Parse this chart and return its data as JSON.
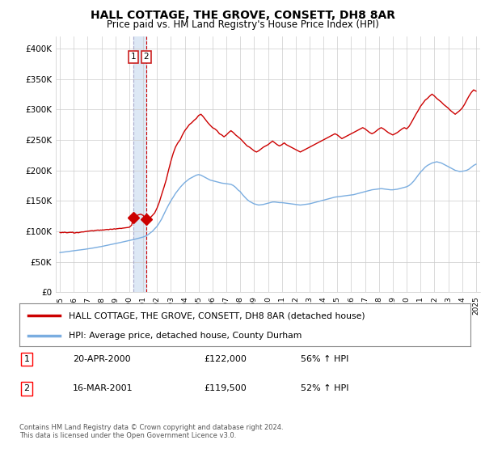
{
  "title": "HALL COTTAGE, THE GROVE, CONSETT, DH8 8AR",
  "subtitle": "Price paid vs. HM Land Registry's House Price Index (HPI)",
  "legend_line1": "HALL COTTAGE, THE GROVE, CONSETT, DH8 8AR (detached house)",
  "legend_line2": "HPI: Average price, detached house, County Durham",
  "footer": "Contains HM Land Registry data © Crown copyright and database right 2024.\nThis data is licensed under the Open Government Licence v3.0.",
  "transactions": [
    {
      "num": 1,
      "date": "20-APR-2000",
      "price": "£122,000",
      "hpi": "56% ↑ HPI"
    },
    {
      "num": 2,
      "date": "16-MAR-2001",
      "price": "£119,500",
      "hpi": "52% ↑ HPI"
    }
  ],
  "marker1_x": 2000.3,
  "marker2_x": 2001.21,
  "marker1_y": 122000,
  "marker2_y": 119500,
  "red_data": [
    [
      1995.0,
      98000
    ],
    [
      1995.08,
      97500
    ],
    [
      1995.17,
      98200
    ],
    [
      1995.25,
      97800
    ],
    [
      1995.33,
      98500
    ],
    [
      1995.42,
      98000
    ],
    [
      1995.5,
      97500
    ],
    [
      1995.58,
      97800
    ],
    [
      1995.67,
      98000
    ],
    [
      1995.75,
      98300
    ],
    [
      1995.83,
      98100
    ],
    [
      1995.92,
      98500
    ],
    [
      1996.0,
      97000
    ],
    [
      1996.08,
      97200
    ],
    [
      1996.17,
      97800
    ],
    [
      1996.25,
      98000
    ],
    [
      1996.33,
      97500
    ],
    [
      1996.42,
      98200
    ],
    [
      1996.5,
      98500
    ],
    [
      1996.58,
      99000
    ],
    [
      1996.67,
      98800
    ],
    [
      1996.75,
      99200
    ],
    [
      1996.83,
      99500
    ],
    [
      1996.92,
      99800
    ],
    [
      1997.0,
      100000
    ],
    [
      1997.08,
      100200
    ],
    [
      1997.17,
      100500
    ],
    [
      1997.25,
      100800
    ],
    [
      1997.33,
      101000
    ],
    [
      1997.42,
      100500
    ],
    [
      1997.5,
      101200
    ],
    [
      1997.58,
      101500
    ],
    [
      1997.67,
      101800
    ],
    [
      1997.75,
      102000
    ],
    [
      1997.83,
      101500
    ],
    [
      1997.92,
      102000
    ],
    [
      1998.0,
      101800
    ],
    [
      1998.08,
      102200
    ],
    [
      1998.17,
      102000
    ],
    [
      1998.25,
      102500
    ],
    [
      1998.33,
      102800
    ],
    [
      1998.42,
      103000
    ],
    [
      1998.5,
      102500
    ],
    [
      1998.58,
      103200
    ],
    [
      1998.67,
      103500
    ],
    [
      1998.75,
      103000
    ],
    [
      1998.83,
      103500
    ],
    [
      1998.92,
      104000
    ],
    [
      1999.0,
      103500
    ],
    [
      1999.08,
      104000
    ],
    [
      1999.17,
      104200
    ],
    [
      1999.25,
      104500
    ],
    [
      1999.33,
      104800
    ],
    [
      1999.42,
      104500
    ],
    [
      1999.5,
      105000
    ],
    [
      1999.58,
      105200
    ],
    [
      1999.67,
      105500
    ],
    [
      1999.75,
      105800
    ],
    [
      1999.83,
      106000
    ],
    [
      1999.92,
      106200
    ],
    [
      2000.0,
      106500
    ],
    [
      2000.17,
      110000
    ],
    [
      2000.3,
      122000
    ],
    [
      2000.5,
      125000
    ],
    [
      2000.67,
      127000
    ],
    [
      2000.83,
      128000
    ],
    [
      2001.0,
      126000
    ],
    [
      2001.21,
      119500
    ],
    [
      2001.5,
      122000
    ],
    [
      2001.67,
      126000
    ],
    [
      2001.83,
      130000
    ],
    [
      2002.0,
      138000
    ],
    [
      2002.17,
      148000
    ],
    [
      2002.33,
      160000
    ],
    [
      2002.5,
      172000
    ],
    [
      2002.67,
      185000
    ],
    [
      2002.83,
      200000
    ],
    [
      2003.0,
      215000
    ],
    [
      2003.17,
      228000
    ],
    [
      2003.33,
      238000
    ],
    [
      2003.5,
      245000
    ],
    [
      2003.67,
      250000
    ],
    [
      2003.83,
      258000
    ],
    [
      2004.0,
      265000
    ],
    [
      2004.17,
      270000
    ],
    [
      2004.33,
      275000
    ],
    [
      2004.5,
      278000
    ],
    [
      2004.67,
      282000
    ],
    [
      2004.83,
      285000
    ],
    [
      2005.0,
      290000
    ],
    [
      2005.17,
      292000
    ],
    [
      2005.33,
      288000
    ],
    [
      2005.5,
      283000
    ],
    [
      2005.67,
      278000
    ],
    [
      2005.83,
      274000
    ],
    [
      2006.0,
      270000
    ],
    [
      2006.17,
      268000
    ],
    [
      2006.33,
      265000
    ],
    [
      2006.5,
      260000
    ],
    [
      2006.67,
      258000
    ],
    [
      2006.83,
      255000
    ],
    [
      2007.0,
      258000
    ],
    [
      2007.17,
      262000
    ],
    [
      2007.33,
      265000
    ],
    [
      2007.5,
      262000
    ],
    [
      2007.67,
      258000
    ],
    [
      2007.83,
      255000
    ],
    [
      2008.0,
      252000
    ],
    [
      2008.17,
      248000
    ],
    [
      2008.33,
      244000
    ],
    [
      2008.5,
      240000
    ],
    [
      2008.67,
      238000
    ],
    [
      2008.83,
      235000
    ],
    [
      2009.0,
      232000
    ],
    [
      2009.17,
      230000
    ],
    [
      2009.33,
      232000
    ],
    [
      2009.5,
      235000
    ],
    [
      2009.67,
      238000
    ],
    [
      2009.83,
      240000
    ],
    [
      2010.0,
      242000
    ],
    [
      2010.17,
      245000
    ],
    [
      2010.33,
      248000
    ],
    [
      2010.5,
      245000
    ],
    [
      2010.67,
      242000
    ],
    [
      2010.83,
      240000
    ],
    [
      2011.0,
      242000
    ],
    [
      2011.17,
      245000
    ],
    [
      2011.33,
      242000
    ],
    [
      2011.5,
      240000
    ],
    [
      2011.67,
      238000
    ],
    [
      2011.83,
      236000
    ],
    [
      2012.0,
      234000
    ],
    [
      2012.17,
      232000
    ],
    [
      2012.33,
      230000
    ],
    [
      2012.5,
      232000
    ],
    [
      2012.67,
      234000
    ],
    [
      2012.83,
      236000
    ],
    [
      2013.0,
      238000
    ],
    [
      2013.17,
      240000
    ],
    [
      2013.33,
      242000
    ],
    [
      2013.5,
      244000
    ],
    [
      2013.67,
      246000
    ],
    [
      2013.83,
      248000
    ],
    [
      2014.0,
      250000
    ],
    [
      2014.17,
      252000
    ],
    [
      2014.33,
      254000
    ],
    [
      2014.5,
      256000
    ],
    [
      2014.67,
      258000
    ],
    [
      2014.83,
      260000
    ],
    [
      2015.0,
      258000
    ],
    [
      2015.17,
      255000
    ],
    [
      2015.33,
      252000
    ],
    [
      2015.5,
      254000
    ],
    [
      2015.67,
      256000
    ],
    [
      2015.83,
      258000
    ],
    [
      2016.0,
      260000
    ],
    [
      2016.17,
      262000
    ],
    [
      2016.33,
      264000
    ],
    [
      2016.5,
      266000
    ],
    [
      2016.67,
      268000
    ],
    [
      2016.83,
      270000
    ],
    [
      2017.0,
      268000
    ],
    [
      2017.17,
      265000
    ],
    [
      2017.33,
      262000
    ],
    [
      2017.5,
      260000
    ],
    [
      2017.67,
      262000
    ],
    [
      2017.83,
      265000
    ],
    [
      2018.0,
      268000
    ],
    [
      2018.17,
      270000
    ],
    [
      2018.33,
      268000
    ],
    [
      2018.5,
      265000
    ],
    [
      2018.67,
      262000
    ],
    [
      2018.83,
      260000
    ],
    [
      2019.0,
      258000
    ],
    [
      2019.17,
      260000
    ],
    [
      2019.33,
      262000
    ],
    [
      2019.5,
      265000
    ],
    [
      2019.67,
      268000
    ],
    [
      2019.83,
      270000
    ],
    [
      2020.0,
      268000
    ],
    [
      2020.17,
      272000
    ],
    [
      2020.33,
      278000
    ],
    [
      2020.5,
      285000
    ],
    [
      2020.67,
      292000
    ],
    [
      2020.83,
      298000
    ],
    [
      2021.0,
      305000
    ],
    [
      2021.17,
      310000
    ],
    [
      2021.33,
      315000
    ],
    [
      2021.5,
      318000
    ],
    [
      2021.67,
      322000
    ],
    [
      2021.83,
      325000
    ],
    [
      2022.0,
      322000
    ],
    [
      2022.17,
      318000
    ],
    [
      2022.33,
      315000
    ],
    [
      2022.5,
      312000
    ],
    [
      2022.67,
      308000
    ],
    [
      2022.83,
      305000
    ],
    [
      2023.0,
      302000
    ],
    [
      2023.17,
      298000
    ],
    [
      2023.33,
      295000
    ],
    [
      2023.5,
      292000
    ],
    [
      2023.67,
      295000
    ],
    [
      2023.83,
      298000
    ],
    [
      2024.0,
      302000
    ],
    [
      2024.17,
      308000
    ],
    [
      2024.33,
      315000
    ],
    [
      2024.5,
      322000
    ],
    [
      2024.67,
      328000
    ],
    [
      2024.83,
      332000
    ],
    [
      2025.0,
      330000
    ]
  ],
  "blue_data": [
    [
      1995.0,
      65000
    ],
    [
      1995.08,
      65200
    ],
    [
      1995.17,
      65500
    ],
    [
      1995.25,
      65800
    ],
    [
      1995.33,
      66000
    ],
    [
      1995.42,
      66200
    ],
    [
      1995.5,
      66500
    ],
    [
      1995.58,
      66800
    ],
    [
      1995.67,
      67000
    ],
    [
      1995.75,
      67200
    ],
    [
      1995.83,
      67500
    ],
    [
      1995.92,
      67800
    ],
    [
      1996.0,
      68000
    ],
    [
      1996.08,
      68200
    ],
    [
      1996.17,
      68500
    ],
    [
      1996.25,
      68800
    ],
    [
      1996.33,
      69000
    ],
    [
      1996.42,
      69200
    ],
    [
      1996.5,
      69500
    ],
    [
      1996.58,
      69800
    ],
    [
      1996.67,
      70000
    ],
    [
      1996.75,
      70200
    ],
    [
      1996.83,
      70500
    ],
    [
      1996.92,
      70800
    ],
    [
      1997.0,
      71000
    ],
    [
      1997.08,
      71300
    ],
    [
      1997.17,
      71600
    ],
    [
      1997.25,
      72000
    ],
    [
      1997.33,
      72300
    ],
    [
      1997.42,
      72600
    ],
    [
      1997.5,
      73000
    ],
    [
      1997.58,
      73300
    ],
    [
      1997.67,
      73600
    ],
    [
      1997.75,
      74000
    ],
    [
      1997.83,
      74300
    ],
    [
      1997.92,
      74600
    ],
    [
      1998.0,
      75000
    ],
    [
      1998.08,
      75400
    ],
    [
      1998.17,
      75800
    ],
    [
      1998.25,
      76200
    ],
    [
      1998.33,
      76600
    ],
    [
      1998.42,
      77000
    ],
    [
      1998.5,
      77400
    ],
    [
      1998.58,
      77800
    ],
    [
      1998.67,
      78200
    ],
    [
      1998.75,
      78600
    ],
    [
      1998.83,
      79000
    ],
    [
      1998.92,
      79400
    ],
    [
      1999.0,
      79800
    ],
    [
      1999.08,
      80200
    ],
    [
      1999.17,
      80600
    ],
    [
      1999.25,
      81000
    ],
    [
      1999.33,
      81400
    ],
    [
      1999.42,
      81800
    ],
    [
      1999.5,
      82200
    ],
    [
      1999.58,
      82600
    ],
    [
      1999.67,
      83000
    ],
    [
      1999.75,
      83400
    ],
    [
      1999.83,
      83800
    ],
    [
      1999.92,
      84200
    ],
    [
      2000.0,
      84600
    ],
    [
      2000.17,
      85500
    ],
    [
      2000.33,
      86500
    ],
    [
      2000.5,
      87500
    ],
    [
      2000.67,
      88500
    ],
    [
      2000.83,
      89500
    ],
    [
      2001.0,
      90500
    ],
    [
      2001.17,
      92000
    ],
    [
      2001.33,
      94000
    ],
    [
      2001.5,
      97000
    ],
    [
      2001.67,
      100000
    ],
    [
      2001.83,
      104000
    ],
    [
      2002.0,
      108000
    ],
    [
      2002.17,
      114000
    ],
    [
      2002.33,
      120000
    ],
    [
      2002.5,
      128000
    ],
    [
      2002.67,
      136000
    ],
    [
      2002.83,
      143000
    ],
    [
      2003.0,
      150000
    ],
    [
      2003.17,
      156000
    ],
    [
      2003.33,
      162000
    ],
    [
      2003.5,
      167000
    ],
    [
      2003.67,
      172000
    ],
    [
      2003.83,
      176000
    ],
    [
      2004.0,
      180000
    ],
    [
      2004.17,
      183000
    ],
    [
      2004.33,
      186000
    ],
    [
      2004.5,
      188000
    ],
    [
      2004.67,
      190000
    ],
    [
      2004.83,
      192000
    ],
    [
      2005.0,
      193000
    ],
    [
      2005.17,
      192000
    ],
    [
      2005.33,
      190000
    ],
    [
      2005.5,
      188000
    ],
    [
      2005.67,
      186000
    ],
    [
      2005.83,
      184000
    ],
    [
      2006.0,
      183000
    ],
    [
      2006.17,
      182000
    ],
    [
      2006.33,
      181000
    ],
    [
      2006.5,
      180000
    ],
    [
      2006.67,
      179000
    ],
    [
      2006.83,
      178500
    ],
    [
      2007.0,
      178000
    ],
    [
      2007.17,
      177500
    ],
    [
      2007.33,
      177000
    ],
    [
      2007.5,
      175000
    ],
    [
      2007.67,
      172000
    ],
    [
      2007.83,
      168000
    ],
    [
      2008.0,
      165000
    ],
    [
      2008.17,
      160000
    ],
    [
      2008.33,
      156000
    ],
    [
      2008.5,
      152000
    ],
    [
      2008.67,
      149000
    ],
    [
      2008.83,
      147000
    ],
    [
      2009.0,
      145000
    ],
    [
      2009.17,
      144000
    ],
    [
      2009.33,
      143000
    ],
    [
      2009.5,
      143500
    ],
    [
      2009.67,
      144000
    ],
    [
      2009.83,
      145000
    ],
    [
      2010.0,
      146000
    ],
    [
      2010.17,
      147000
    ],
    [
      2010.33,
      148000
    ],
    [
      2010.5,
      148000
    ],
    [
      2010.67,
      147500
    ],
    [
      2010.83,
      147000
    ],
    [
      2011.0,
      147000
    ],
    [
      2011.17,
      146500
    ],
    [
      2011.33,
      146000
    ],
    [
      2011.5,
      145500
    ],
    [
      2011.67,
      145000
    ],
    [
      2011.83,
      144500
    ],
    [
      2012.0,
      144000
    ],
    [
      2012.17,
      143500
    ],
    [
      2012.33,
      143000
    ],
    [
      2012.5,
      143500
    ],
    [
      2012.67,
      144000
    ],
    [
      2012.83,
      144500
    ],
    [
      2013.0,
      145000
    ],
    [
      2013.17,
      146000
    ],
    [
      2013.33,
      147000
    ],
    [
      2013.5,
      148000
    ],
    [
      2013.67,
      149000
    ],
    [
      2013.83,
      150000
    ],
    [
      2014.0,
      151000
    ],
    [
      2014.17,
      152000
    ],
    [
      2014.33,
      153000
    ],
    [
      2014.5,
      154000
    ],
    [
      2014.67,
      155000
    ],
    [
      2014.83,
      156000
    ],
    [
      2015.0,
      156500
    ],
    [
      2015.17,
      157000
    ],
    [
      2015.33,
      157500
    ],
    [
      2015.5,
      158000
    ],
    [
      2015.67,
      158500
    ],
    [
      2015.83,
      159000
    ],
    [
      2016.0,
      159500
    ],
    [
      2016.17,
      160000
    ],
    [
      2016.33,
      161000
    ],
    [
      2016.5,
      162000
    ],
    [
      2016.67,
      163000
    ],
    [
      2016.83,
      164000
    ],
    [
      2017.0,
      165000
    ],
    [
      2017.17,
      166000
    ],
    [
      2017.33,
      167000
    ],
    [
      2017.5,
      168000
    ],
    [
      2017.67,
      168500
    ],
    [
      2017.83,
      169000
    ],
    [
      2018.0,
      169500
    ],
    [
      2018.17,
      170000
    ],
    [
      2018.33,
      169500
    ],
    [
      2018.5,
      169000
    ],
    [
      2018.67,
      168500
    ],
    [
      2018.83,
      168000
    ],
    [
      2019.0,
      168000
    ],
    [
      2019.17,
      168500
    ],
    [
      2019.33,
      169000
    ],
    [
      2019.5,
      170000
    ],
    [
      2019.67,
      171000
    ],
    [
      2019.83,
      172000
    ],
    [
      2020.0,
      173000
    ],
    [
      2020.17,
      175000
    ],
    [
      2020.33,
      178000
    ],
    [
      2020.5,
      182000
    ],
    [
      2020.67,
      187000
    ],
    [
      2020.83,
      192000
    ],
    [
      2021.0,
      197000
    ],
    [
      2021.17,
      201000
    ],
    [
      2021.33,
      205000
    ],
    [
      2021.5,
      208000
    ],
    [
      2021.67,
      210000
    ],
    [
      2021.83,
      212000
    ],
    [
      2022.0,
      213000
    ],
    [
      2022.17,
      214000
    ],
    [
      2022.33,
      213000
    ],
    [
      2022.5,
      212000
    ],
    [
      2022.67,
      210000
    ],
    [
      2022.83,
      208000
    ],
    [
      2023.0,
      206000
    ],
    [
      2023.17,
      204000
    ],
    [
      2023.33,
      202000
    ],
    [
      2023.5,
      200000
    ],
    [
      2023.67,
      199000
    ],
    [
      2023.83,
      198000
    ],
    [
      2024.0,
      198500
    ],
    [
      2024.17,
      199000
    ],
    [
      2024.33,
      200000
    ],
    [
      2024.5,
      202000
    ],
    [
      2024.67,
      205000
    ],
    [
      2024.83,
      208000
    ],
    [
      2025.0,
      210000
    ]
  ],
  "ylim": [
    0,
    420000
  ],
  "xlim": [
    1994.7,
    2025.3
  ],
  "yticks": [
    0,
    50000,
    100000,
    150000,
    200000,
    250000,
    300000,
    350000,
    400000
  ],
  "ytick_labels": [
    "£0",
    "£50K",
    "£100K",
    "£150K",
    "£200K",
    "£250K",
    "£300K",
    "£350K",
    "£400K"
  ],
  "xticks": [
    1995,
    1996,
    1997,
    1998,
    1999,
    2000,
    2001,
    2002,
    2003,
    2004,
    2005,
    2006,
    2007,
    2008,
    2009,
    2010,
    2011,
    2012,
    2013,
    2014,
    2015,
    2016,
    2017,
    2018,
    2019,
    2020,
    2021,
    2022,
    2023,
    2024,
    2025
  ],
  "red_color": "#cc0000",
  "blue_color": "#7aade0",
  "vline1_color": "#aaaacc",
  "vline2_color": "#cc0000",
  "shade_color": "#dde8f5",
  "bg_color": "#ffffff",
  "grid_color": "#cccccc"
}
